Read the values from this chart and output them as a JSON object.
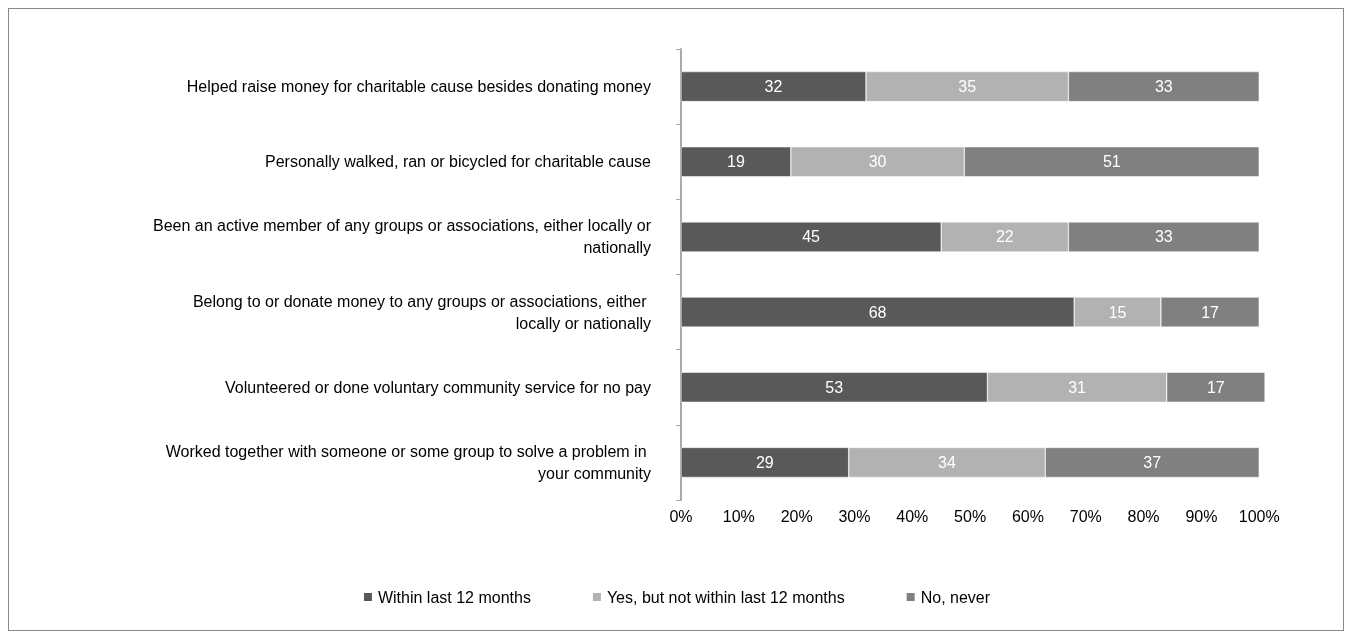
{
  "chart_data": {
    "type": "bar",
    "orientation": "horizontal",
    "stacked": true,
    "data_labels": true,
    "legend": "bottom",
    "grid": false,
    "categories": [
      "Helped raise money for charitable cause besides donating money",
      "Personally walked, ran or bicycled for charitable cause",
      "Been an active member of any groups or associations, either locally or nationally",
      "Belong to or donate money to any groups or associations, either locally or nationally",
      "Volunteered or done voluntary community service for no pay",
      "Worked together with someone or some group to solve a problem in your community"
    ],
    "series": [
      {
        "name": "Within last 12 months",
        "color": "#595959",
        "values": [
          32,
          19,
          45,
          68,
          53,
          29
        ]
      },
      {
        "name": "Yes, but not within last 12 months",
        "color": "#b2b2b2",
        "values": [
          35,
          30,
          22,
          15,
          31,
          34
        ]
      },
      {
        "name": "No, never",
        "color": "#808080",
        "values": [
          33,
          51,
          33,
          17,
          17,
          37
        ]
      }
    ],
    "xlim": [
      0,
      101
    ],
    "xticks": [
      {
        "value": 0,
        "label": "0%"
      },
      {
        "value": 10,
        "label": "10%"
      },
      {
        "value": 20,
        "label": "20%"
      },
      {
        "value": 30,
        "label": "30%"
      },
      {
        "value": 40,
        "label": "40%"
      },
      {
        "value": 50,
        "label": "50%"
      },
      {
        "value": 60,
        "label": "60%"
      },
      {
        "value": 70,
        "label": "70%"
      },
      {
        "value": 80,
        "label": "80%"
      },
      {
        "value": 90,
        "label": "90%"
      },
      {
        "value": 100,
        "label": "100%"
      }
    ]
  }
}
